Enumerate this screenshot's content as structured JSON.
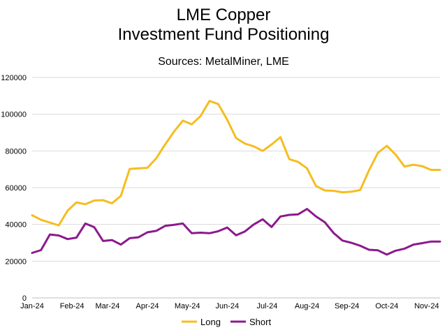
{
  "chart_data": {
    "type": "line",
    "title": "LME Copper\nInvestment Fund Positioning",
    "title_lines": [
      "LME Copper",
      "Investment Fund Positioning"
    ],
    "subtitle": "Sources: MetalMiner, LME",
    "xlabel": "",
    "ylabel": "",
    "ylim": [
      0,
      120000
    ],
    "yticks": [
      0,
      20000,
      40000,
      60000,
      80000,
      100000,
      120000
    ],
    "grid": true,
    "legend_position": "bottom",
    "x_tick_labels": [
      "Jan-24",
      "Feb-24",
      "Mar-24",
      "Apr-24",
      "May-24",
      "Jun-24",
      "Jul-24",
      "Aug-24",
      "Sep-24",
      "Oct-24",
      "Nov-24"
    ],
    "x_tick_positions": [
      0,
      4.5,
      8.5,
      13,
      17.5,
      22,
      26.5,
      31,
      35.5,
      40,
      44.5
    ],
    "x_max": 46,
    "series": [
      {
        "name": "Long",
        "color": "#F5BD1F",
        "values": [
          45000,
          42500,
          41000,
          39500,
          47500,
          52000,
          51000,
          53000,
          53200,
          51500,
          55500,
          70200,
          70500,
          70800,
          76000,
          83500,
          90500,
          96500,
          94500,
          99000,
          107200,
          105500,
          97000,
          87000,
          84000,
          82500,
          80000,
          83500,
          87500,
          75500,
          74000,
          70500,
          61000,
          58500,
          58300,
          57500,
          57800,
          58700,
          69500,
          79000,
          82800,
          78000,
          71500,
          72500,
          71700,
          69700,
          69700
        ]
      },
      {
        "name": "Short",
        "color": "#8B1A8E",
        "values": [
          24500,
          26000,
          34500,
          34000,
          32000,
          32800,
          40500,
          38500,
          31000,
          31500,
          29000,
          32500,
          33000,
          35700,
          36500,
          39200,
          39800,
          40500,
          35200,
          35500,
          35200,
          36300,
          38300,
          34100,
          36200,
          40000,
          42800,
          38600,
          44300,
          45200,
          45500,
          48400,
          44400,
          41200,
          35300,
          31200,
          30000,
          28400,
          26200,
          25900,
          23600,
          25700,
          26800,
          29000,
          29800,
          30700,
          30700
        ]
      }
    ]
  }
}
